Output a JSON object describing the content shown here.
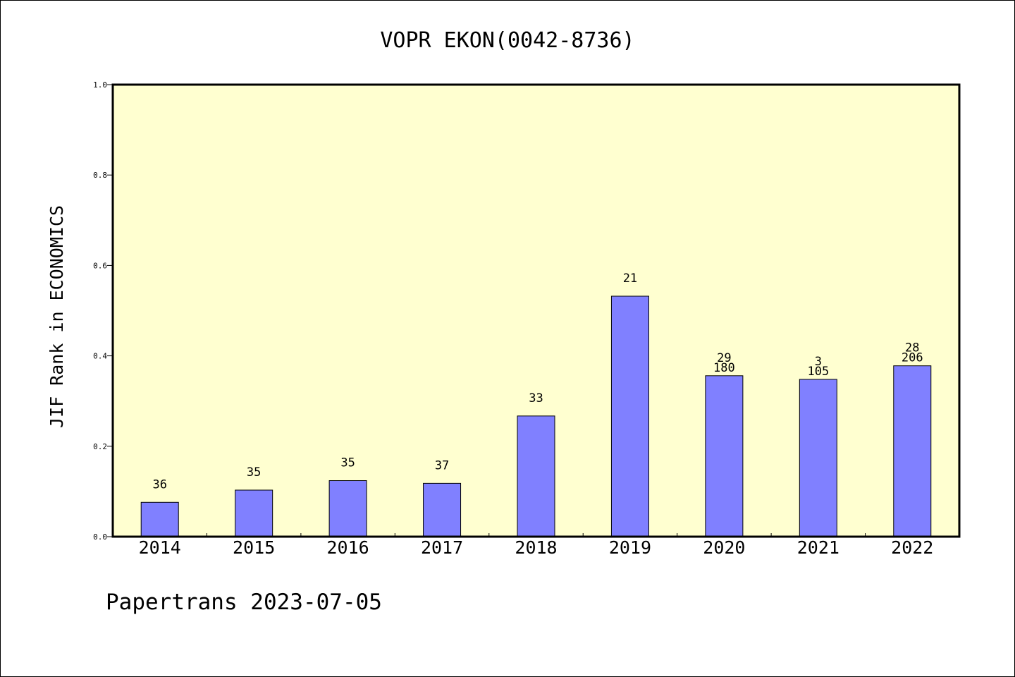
{
  "colors": {
    "plot_background": "#ffffd0",
    "bar_fill": "#8080ff",
    "bar_stroke": "#000000",
    "frame": "#000000"
  },
  "footer": "Papertrans 2023-07-05",
  "chart_data": {
    "type": "bar",
    "title": "VOPR EKON(0042-8736)",
    "xlabel": "",
    "ylabel": "JIF Rank in ECONOMICS",
    "ylim": [
      0,
      1.0
    ],
    "yticks": [
      "0.0",
      "0.2",
      "0.4",
      "0.6",
      "0.8",
      "1.0"
    ],
    "grid": false,
    "categories": [
      "2014",
      "2015",
      "2016",
      "2017",
      "2018",
      "2019",
      "2020",
      "2021",
      "2022"
    ],
    "values": [
      0.076,
      0.103,
      0.124,
      0.118,
      0.267,
      0.532,
      0.356,
      0.348,
      0.378
    ],
    "labels": [
      [
        "36"
      ],
      [
        "35"
      ],
      [
        "35"
      ],
      [
        "37"
      ],
      [
        "33"
      ],
      [
        "21"
      ],
      [
        "29",
        "180"
      ],
      [
        "3",
        "105"
      ],
      [
        "28",
        "206"
      ]
    ]
  }
}
